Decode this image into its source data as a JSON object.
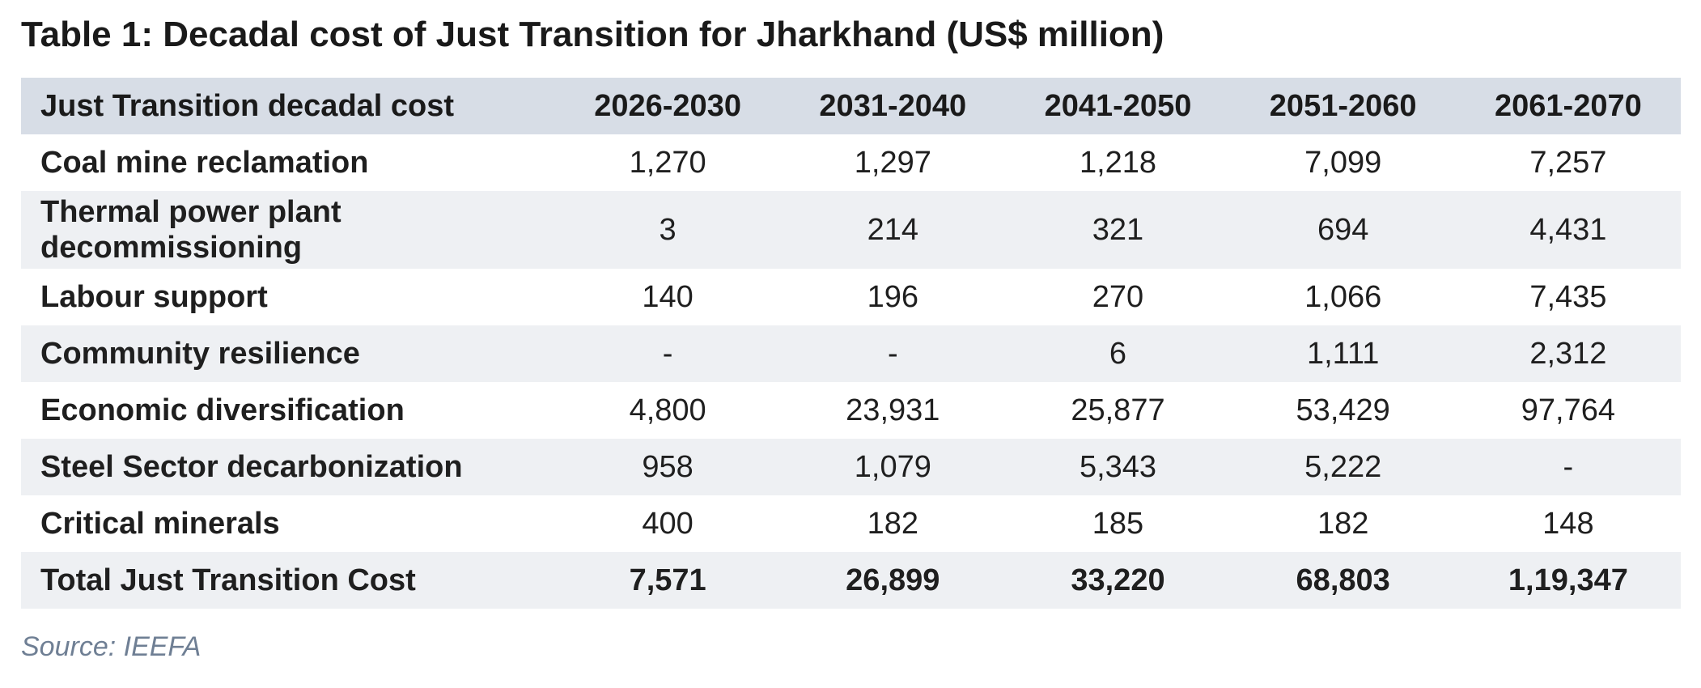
{
  "title": "Table 1: Decadal cost of Just Transition for Jharkhand (US$ million)",
  "table": {
    "headers": [
      "Just Transition decadal cost",
      "2026-2030",
      "2031-2040",
      "2041-2050",
      "2051-2060",
      "2061-2070"
    ],
    "rows": [
      {
        "label": "Coal mine reclamation",
        "values": [
          "1,270",
          "1,297",
          "1,218",
          "7,099",
          "7,257"
        ]
      },
      {
        "label": "Thermal power plant decommissioning",
        "values": [
          "3",
          "214",
          "321",
          "694",
          "4,431"
        ]
      },
      {
        "label": "Labour support",
        "values": [
          "140",
          "196",
          "270",
          "1,066",
          "7,435"
        ]
      },
      {
        "label": "Community resilience",
        "values": [
          "-",
          "-",
          "6",
          "1,111",
          "2,312"
        ]
      },
      {
        "label": "Economic diversification",
        "values": [
          "4,800",
          "23,931",
          "25,877",
          "53,429",
          "97,764"
        ]
      },
      {
        "label": "Steel Sector decarbonization",
        "values": [
          "958",
          "1,079",
          "5,343",
          "5,222",
          "-"
        ]
      },
      {
        "label": "Critical minerals",
        "values": [
          "400",
          "182",
          "185",
          "182",
          "148"
        ]
      },
      {
        "label": "Total Just Transition Cost",
        "values": [
          "7,571",
          "26,899",
          "33,220",
          "68,803",
          "1,19,347"
        ]
      }
    ]
  },
  "source": "Source: IEEFA"
}
